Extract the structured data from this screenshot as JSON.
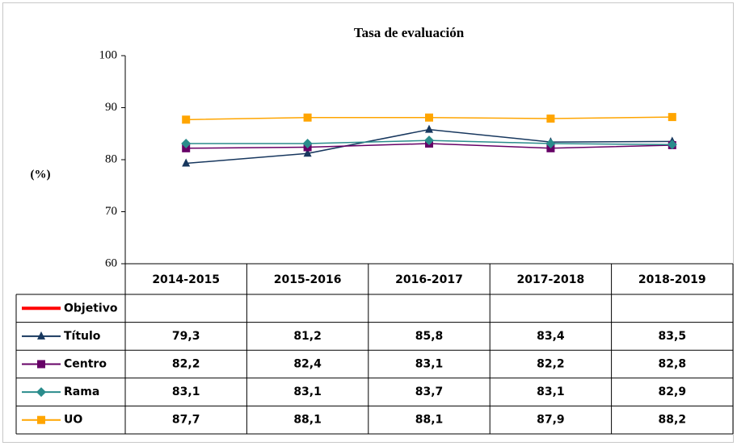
{
  "chart_data": {
    "type": "line",
    "title": "Tasa de evaluación",
    "y_label": "(%)",
    "categories": [
      "2014-2015",
      "2015-2016",
      "2016-2017",
      "2017-2018",
      "2018-2019"
    ],
    "ylim": [
      60,
      100
    ],
    "yticks": [
      60,
      70,
      80,
      90,
      100
    ],
    "grid": false,
    "series": [
      {
        "name": "Objetivo",
        "color": "#ff0000",
        "marker": "none",
        "values": [
          null,
          null,
          null,
          null,
          null
        ]
      },
      {
        "name": "Título",
        "color": "#17375e",
        "marker": "triangle",
        "values": [
          79.3,
          81.2,
          85.8,
          83.4,
          83.5
        ],
        "value_labels": [
          "79,3",
          "81,2",
          "85,8",
          "83,4",
          "83,5"
        ]
      },
      {
        "name": "Centro",
        "color": "#660066",
        "marker": "square",
        "values": [
          82.2,
          82.4,
          83.1,
          82.2,
          82.8
        ],
        "value_labels": [
          "82,2",
          "82,4",
          "83,1",
          "82,2",
          "82,8"
        ]
      },
      {
        "name": "Rama",
        "color": "#2a8c8c",
        "marker": "diamond",
        "values": [
          83.1,
          83.1,
          83.7,
          83.1,
          82.9
        ],
        "value_labels": [
          "83,1",
          "83,1",
          "83,7",
          "83,1",
          "82,9"
        ]
      },
      {
        "name": "UO",
        "color": "#ffa500",
        "marker": "square",
        "values": [
          87.7,
          88.1,
          88.1,
          87.9,
          88.2
        ],
        "value_labels": [
          "87,7",
          "88,1",
          "88,1",
          "87,9",
          "88,2"
        ]
      }
    ]
  }
}
